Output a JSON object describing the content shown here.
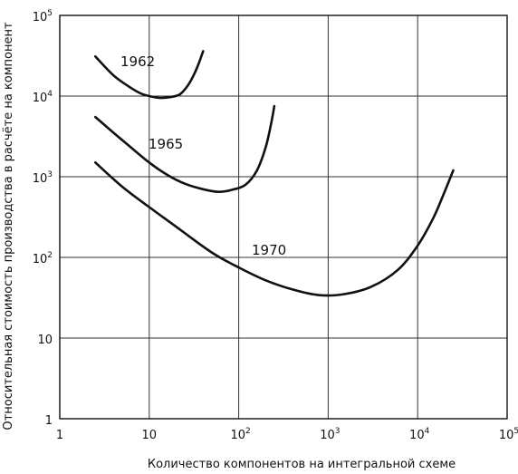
{
  "chart_data": {
    "type": "line",
    "title": "",
    "xlabel": "Количество компонентов на интегральной схеме",
    "ylabel": "Относительная стоимость производства в расчёте на компонент",
    "xscale": "log",
    "yscale": "log",
    "xlim": [
      1,
      100000
    ],
    "ylim": [
      1,
      100000
    ],
    "grid": true,
    "x_ticks": [
      {
        "base": "1",
        "exp": ""
      },
      {
        "base": "10",
        "exp": ""
      },
      {
        "base": "10",
        "exp": "2"
      },
      {
        "base": "10",
        "exp": "3"
      },
      {
        "base": "10",
        "exp": "4"
      },
      {
        "base": "10",
        "exp": "5"
      }
    ],
    "y_ticks": [
      {
        "base": "1",
        "exp": ""
      },
      {
        "base": "10",
        "exp": ""
      },
      {
        "base": "10",
        "exp": "2"
      },
      {
        "base": "10",
        "exp": "3"
      },
      {
        "base": "10",
        "exp": "4"
      },
      {
        "base": "10",
        "exp": "5"
      }
    ],
    "series": [
      {
        "name": "1962",
        "x": [
          2.5,
          4,
          6,
          8,
          10,
          13,
          17,
          22,
          27,
          32,
          36,
          40
        ],
        "y": [
          31000,
          18000,
          13000,
          10800,
          10000,
          9500,
          9700,
          10500,
          13500,
          19000,
          26000,
          36000
        ]
      },
      {
        "name": "1965",
        "x": [
          2.5,
          4,
          6,
          10,
          16,
          25,
          40,
          60,
          85,
          120,
          160,
          200,
          230,
          250
        ],
        "y": [
          5500,
          3500,
          2400,
          1500,
          1050,
          820,
          700,
          650,
          690,
          800,
          1200,
          2300,
          4500,
          7500
        ]
      },
      {
        "name": "1970",
        "x": [
          2.5,
          5,
          10,
          20,
          50,
          100,
          200,
          400,
          800,
          1500,
          3000,
          6000,
          10000,
          15000,
          20000,
          25000
        ],
        "y": [
          1500,
          750,
          420,
          240,
          115,
          75,
          52,
          40,
          34,
          35,
          43,
          70,
          140,
          310,
          650,
          1200
        ]
      }
    ]
  }
}
